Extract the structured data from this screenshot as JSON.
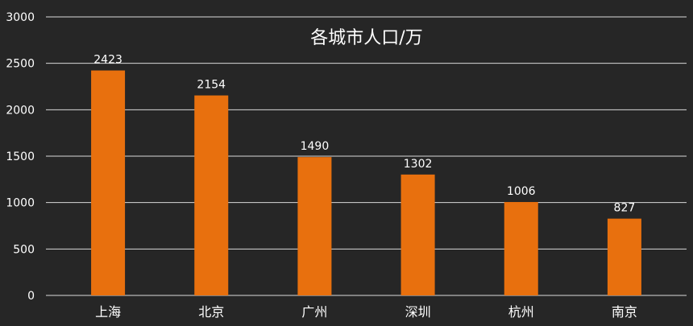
{
  "chart_data": {
    "type": "bar",
    "title": "各城市人口/万",
    "categories": [
      "上海",
      "北京",
      "广州",
      "深圳",
      "杭州",
      "南京"
    ],
    "values": [
      2423,
      2154,
      1490,
      1302,
      1006,
      827
    ],
    "ylim": [
      0,
      3000
    ],
    "yticks": [
      0,
      500,
      1000,
      1500,
      2000,
      2500,
      3000
    ],
    "grid": true,
    "legend": "none",
    "bar_color": "#e8700e",
    "background_color": "#262626"
  }
}
